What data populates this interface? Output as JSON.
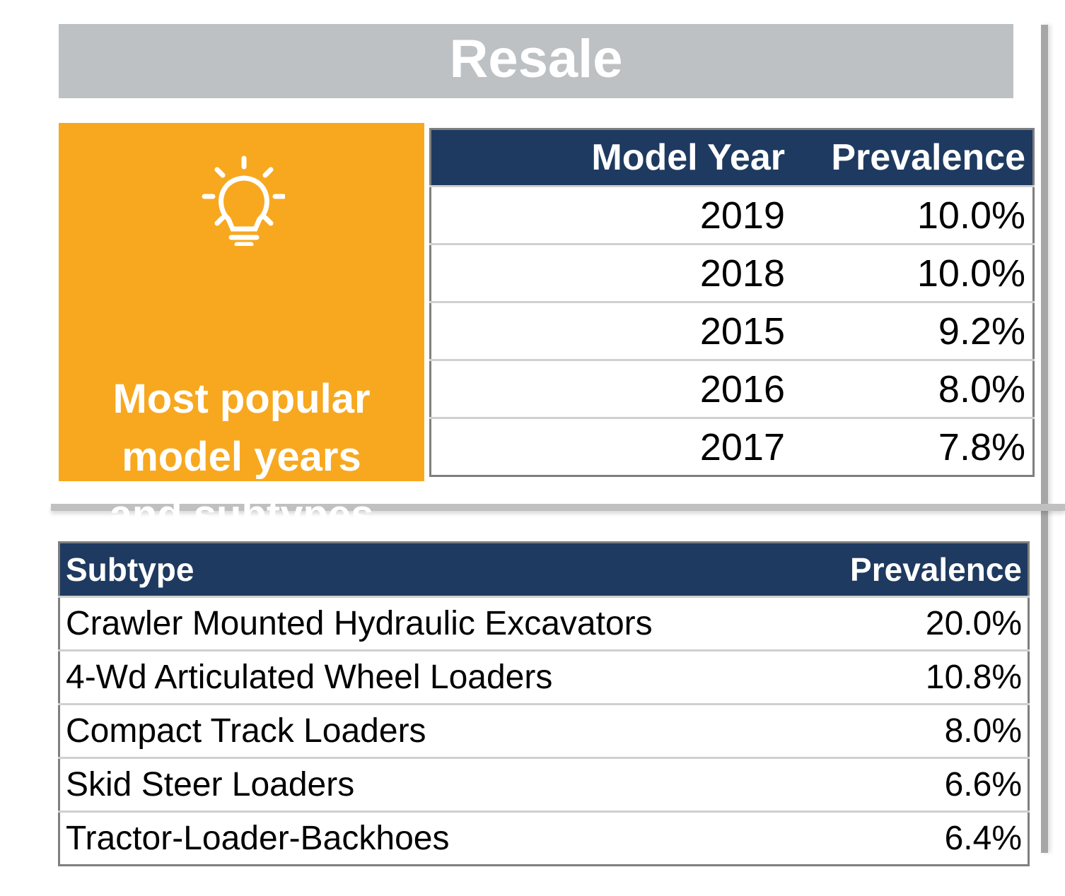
{
  "title": "Resale",
  "callout": {
    "icon": "lightbulb-icon",
    "text": "Most popular model years and subtypes",
    "line1": "Most popular",
    "line2": "model years",
    "line3": "and subtypes"
  },
  "colors": {
    "title_bg": "#bdc1c4",
    "callout_bg": "#f7a81f",
    "header_bg": "#1e3a60"
  },
  "model_years": {
    "headers": [
      "Model Year",
      "Prevalence"
    ],
    "rows": [
      [
        "2019",
        "10.0%"
      ],
      [
        "2018",
        "10.0%"
      ],
      [
        "2015",
        "9.2%"
      ],
      [
        "2016",
        "8.0%"
      ],
      [
        "2017",
        "7.8%"
      ]
    ]
  },
  "subtypes": {
    "headers": [
      "Subtype",
      "Prevalence"
    ],
    "rows": [
      [
        "Crawler Mounted Hydraulic Excavators",
        "20.0%"
      ],
      [
        "4-Wd Articulated Wheel Loaders",
        "10.8%"
      ],
      [
        "Compact Track Loaders",
        "8.0%"
      ],
      [
        "Skid Steer Loaders",
        "6.6%"
      ],
      [
        "Tractor-Loader-Backhoes",
        "6.4%"
      ]
    ]
  }
}
